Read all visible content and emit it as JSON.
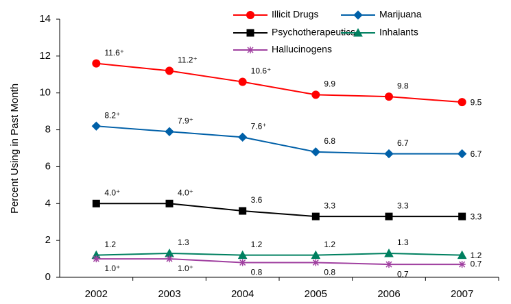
{
  "chart_data": {
    "type": "line",
    "y_label": "Percent Using in Past Month",
    "categories": [
      "2002",
      "2003",
      "2004",
      "2005",
      "2006",
      "2007"
    ],
    "ylim": [
      0,
      14
    ],
    "yticks": [
      0,
      2,
      4,
      6,
      8,
      10,
      12,
      14
    ],
    "series": [
      {
        "name": "Illicit Drugs",
        "color": "#ff0000",
        "marker": "circle",
        "values": [
          11.6,
          11.2,
          10.6,
          9.9,
          9.8,
          9.5
        ],
        "value_labels": [
          "11.6⁺",
          "11.2⁺",
          "10.6⁺",
          "9.9",
          "9.8",
          "9.5"
        ]
      },
      {
        "name": "Marijuana",
        "color": "#0060a8",
        "marker": "diamond",
        "values": [
          8.2,
          7.9,
          7.6,
          6.8,
          6.7,
          6.7
        ],
        "value_labels": [
          "8.2⁺",
          "7.9⁺",
          "7.6⁺",
          "6.8",
          "6.7",
          "6.7"
        ]
      },
      {
        "name": "Psychotherapeutics",
        "color": "#000000",
        "marker": "square",
        "values": [
          4.0,
          4.0,
          3.6,
          3.3,
          3.3,
          3.3
        ],
        "value_labels": [
          "4.0⁺",
          "4.0⁺",
          "3.6",
          "3.3",
          "3.3",
          "3.3"
        ]
      },
      {
        "name": "Inhalants",
        "color": "#008060",
        "marker": "triangle",
        "values": [
          1.2,
          1.3,
          1.2,
          1.2,
          1.3,
          1.2
        ],
        "value_labels": [
          "1.2",
          "1.3",
          "1.2",
          "1.2",
          "1.3",
          "1.2"
        ]
      },
      {
        "name": "Hallucinogens",
        "color": "#a040a0",
        "marker": "asterisk",
        "values": [
          1.0,
          1.0,
          0.8,
          0.8,
          0.7,
          0.7
        ],
        "value_labels": [
          "1.0⁺",
          "1.0⁺",
          "0.8",
          "0.8",
          "0.7",
          "0.7"
        ]
      }
    ]
  }
}
